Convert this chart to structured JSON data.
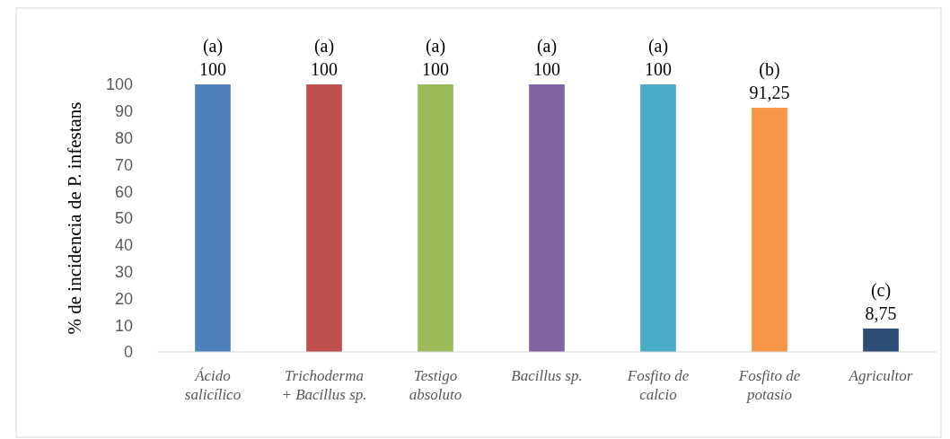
{
  "chart_data": {
    "type": "bar",
    "ylabel": "% de incidencia de P. infestans",
    "categories": [
      "Ácido\nsalicílico",
      "Trichoderma\n+ Bacillus sp.",
      "Testigo\nabsoluto",
      "Bacillus sp.",
      "Fosfito de\ncalcio",
      "Fosfito de\npotasio",
      "Agricultor"
    ],
    "values": [
      100,
      100,
      100,
      100,
      100,
      91.25,
      8.75
    ],
    "colors": [
      "#4f81bd",
      "#c0504d",
      "#9bbb59",
      "#8064a2",
      "#4bacc6",
      "#f79646",
      "#2c4d75"
    ],
    "value_labels": [
      "100",
      "100",
      "100",
      "100",
      "100",
      "91,25",
      "8,75"
    ],
    "annotations": [
      {
        "text": "(a)",
        "x": "Ácido\nsalicílico",
        "y": 100
      },
      {
        "text": "(a)",
        "x": "Trichoderma\n+ Bacillus sp.",
        "y": 100
      },
      {
        "text": "(a)",
        "x": "Testigo\nabsoluto",
        "y": 100
      },
      {
        "text": "(a)",
        "x": "Bacillus sp.",
        "y": 100
      },
      {
        "text": "(a)",
        "x": "Fosfito de\ncalcio",
        "y": 100
      },
      {
        "text": "(b)",
        "x": "Fosfito de\npotasio",
        "y": 91.25
      },
      {
        "text": "(c)",
        "x": "Agricultor",
        "y": 8.75
      }
    ],
    "ylim": [
      0,
      100
    ],
    "yticks": [
      0,
      10,
      20,
      30,
      40,
      50,
      60,
      70,
      80,
      90,
      100
    ],
    "grid": false
  }
}
